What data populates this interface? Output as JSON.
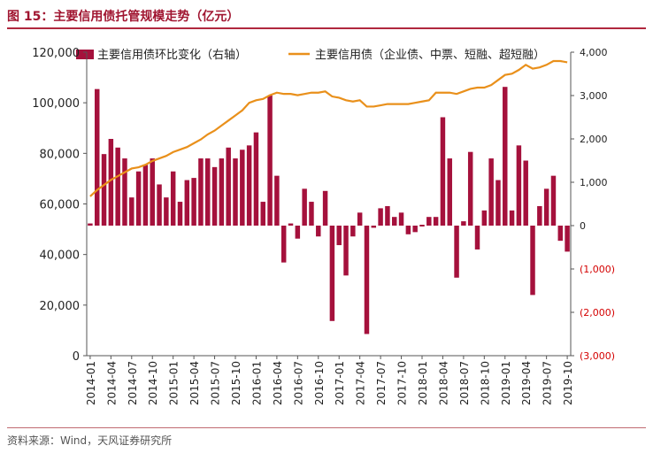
{
  "figure": {
    "title": "图 15：主要信用债托管规模走势（亿元）",
    "source": "资料来源：Wind，天风证券研究所"
  },
  "colors": {
    "bar": "#a5113c",
    "line": "#e9901b",
    "negative_tick": "#d40000",
    "accent": "#a01530"
  },
  "chart_data": {
    "type": "bar+line",
    "legend_position": "top",
    "grid": false,
    "categories": [
      "2014-01",
      "2014-02",
      "2014-03",
      "2014-04",
      "2014-05",
      "2014-06",
      "2014-07",
      "2014-08",
      "2014-09",
      "2014-10",
      "2014-11",
      "2014-12",
      "2015-01",
      "2015-02",
      "2015-03",
      "2015-04",
      "2015-05",
      "2015-06",
      "2015-07",
      "2015-08",
      "2015-09",
      "2015-10",
      "2015-11",
      "2015-12",
      "2016-01",
      "2016-02",
      "2016-03",
      "2016-04",
      "2016-05",
      "2016-06",
      "2016-07",
      "2016-08",
      "2016-09",
      "2016-10",
      "2016-11",
      "2016-12",
      "2017-01",
      "2017-02",
      "2017-03",
      "2017-04",
      "2017-05",
      "2017-06",
      "2017-07",
      "2017-08",
      "2017-09",
      "2017-10",
      "2017-11",
      "2017-12",
      "2018-01",
      "2018-02",
      "2018-03",
      "2018-04",
      "2018-05",
      "2018-06",
      "2018-07",
      "2018-08",
      "2018-09",
      "2018-10",
      "2018-11",
      "2018-12",
      "2019-01",
      "2019-02",
      "2019-03",
      "2019-04",
      "2019-05",
      "2019-06",
      "2019-07",
      "2019-08",
      "2019-09",
      "2019-10"
    ],
    "x_tick_labels": [
      "2014-01",
      "2014-04",
      "2014-07",
      "2014-10",
      "2015-01",
      "2015-04",
      "2015-07",
      "2015-10",
      "2016-01",
      "2016-04",
      "2016-07",
      "2016-10",
      "2017-01",
      "2017-04",
      "2017-07",
      "2017-10",
      "2018-01",
      "2018-04",
      "2018-07",
      "2018-10",
      "2019-01",
      "2019-04",
      "2019-07",
      "2019-10"
    ],
    "series": [
      {
        "name": "主要信用债环比变化（右轴）",
        "type": "bar",
        "axis": "right",
        "values": [
          50,
          3150,
          1650,
          2000,
          1800,
          1550,
          650,
          1250,
          1400,
          1550,
          950,
          650,
          1250,
          550,
          1050,
          1100,
          1550,
          1550,
          1350,
          1550,
          1800,
          1550,
          1750,
          1850,
          2150,
          550,
          3000,
          1150,
          -850,
          50,
          -300,
          850,
          550,
          -250,
          800,
          -2200,
          -450,
          -1150,
          -250,
          300,
          -2500,
          -50,
          400,
          450,
          200,
          300,
          -200,
          -150,
          0,
          200,
          200,
          2500,
          1550,
          -1200,
          100,
          1700,
          -550,
          350,
          1550,
          1050,
          3200,
          350,
          1850,
          1500,
          -1600,
          450,
          850,
          1150,
          -350,
          -600
        ]
      },
      {
        "name": "主要信用债（企业债、中票、短融、超短融）",
        "type": "line",
        "axis": "left",
        "values": [
          63000,
          65500,
          67500,
          69500,
          71000,
          72500,
          74000,
          74500,
          75500,
          77000,
          78000,
          79000,
          80500,
          81500,
          82500,
          84000,
          85500,
          87500,
          89000,
          91000,
          93000,
          95000,
          97000,
          100000,
          101000,
          101500,
          103000,
          104000,
          103500,
          103500,
          103000,
          103500,
          104000,
          104000,
          104500,
          102500,
          102000,
          101000,
          100500,
          101000,
          98500,
          98500,
          99000,
          99500,
          99500,
          99500,
          99500,
          100000,
          100500,
          101000,
          104000,
          104000,
          104000,
          103500,
          104500,
          105500,
          106000,
          106000,
          107000,
          109000,
          111000,
          111500,
          113000,
          115000,
          113500,
          114000,
          115000,
          116500,
          116500,
          116000
        ]
      }
    ],
    "left_axis": {
      "min": 0,
      "max": 120000,
      "ticks": [
        0,
        20000,
        40000,
        60000,
        80000,
        100000,
        120000
      ],
      "tick_labels": [
        "0",
        "20,000",
        "40,000",
        "60,000",
        "80,000",
        "100,000",
        "120,000"
      ]
    },
    "right_axis": {
      "min": -3000,
      "max": 4000,
      "ticks": [
        -3000,
        -2000,
        -1000,
        0,
        1000,
        2000,
        3000,
        4000
      ],
      "tick_labels": [
        "(3,000)",
        "(2,000)",
        "(1,000)",
        "0",
        "1,000",
        "2,000",
        "3,000",
        "4,000"
      ]
    }
  }
}
